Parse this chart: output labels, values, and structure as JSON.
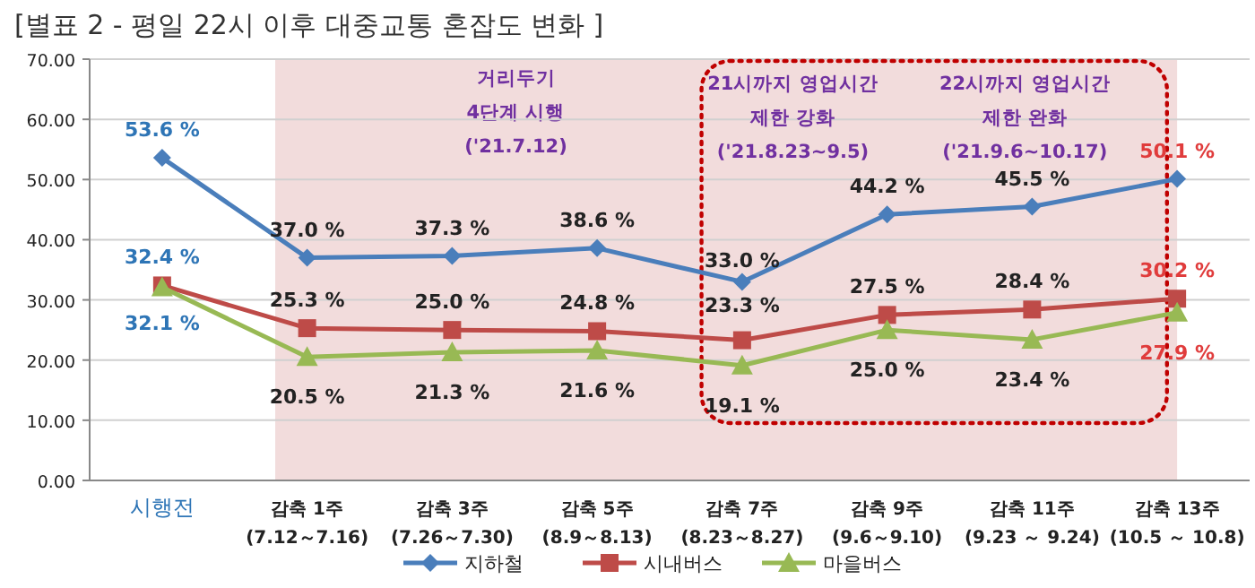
{
  "chart_data": {
    "type": "line",
    "title": "[별표 2 - 평일 22시 이후 대중교통 혼잡도 변화 ]",
    "categories": [
      "시행전",
      "감축 1주\n(7.12～7.16)",
      "감축 3주\n(7.26～7.30)",
      "감축 5주\n(8.9～8.13)",
      "감축 7주\n(8.23～8.27)",
      "감축 9주\n(9.6～9.10)",
      "감축 11주\n(9.23 ～ 9.24)",
      "감축 13주\n(10.5 ～ 10.8)"
    ],
    "series": [
      {
        "name": "지하철",
        "color": "#4a7ebb",
        "marker": "diamond",
        "values": [
          53.6,
          37.0,
          37.3,
          38.6,
          33.0,
          44.2,
          45.5,
          50.1
        ],
        "value_labels": [
          "53.6 %",
          "37.0 %",
          "37.3 %",
          "38.6 %",
          "33.0 %",
          "44.2 %",
          "45.5 %",
          "50.1 %"
        ]
      },
      {
        "name": "시내버스",
        "color": "#be4b48",
        "marker": "square",
        "values": [
          32.4,
          25.3,
          25.0,
          24.8,
          23.3,
          27.5,
          28.4,
          30.2
        ],
        "value_labels": [
          "32.4 %",
          "25.3 %",
          "25.0 %",
          "24.8 %",
          "23.3 %",
          "27.5 %",
          "28.4 %",
          "30.2 %"
        ]
      },
      {
        "name": "마을버스",
        "color": "#98b954",
        "marker": "triangle",
        "values": [
          32.1,
          20.5,
          21.3,
          21.6,
          19.1,
          25.0,
          23.4,
          27.9
        ],
        "value_labels": [
          "32.1 %",
          "20.5 %",
          "21.3 %",
          "21.6 %",
          "19.1 %",
          "25.0 %",
          "23.4 %",
          "27.9 %"
        ]
      }
    ],
    "ylim": [
      0,
      70
    ],
    "yticks": [
      {
        "value": 0,
        "label": "0.00"
      },
      {
        "value": 10,
        "label": "10.00"
      },
      {
        "value": 20,
        "label": "20.00"
      },
      {
        "value": 30,
        "label": "30.00"
      },
      {
        "value": 40,
        "label": "40.00"
      },
      {
        "value": 50,
        "label": "50.00"
      },
      {
        "value": 60,
        "label": "60.00"
      },
      {
        "value": 70,
        "label": "70.00"
      }
    ],
    "grid": "y",
    "legend": "bottom",
    "line_style": "solid",
    "bands": [
      {
        "axis": "x",
        "from": "감축 1주\n(7.12～7.16)",
        "to": "감축 13주\n(10.5 ～ 10.8)",
        "label": "거리두기\n4단계 시행\n('21.7.12)",
        "color": "#f2dcdc"
      }
    ],
    "annotations": [
      "21시까지 영업시간\n제한 강화\n('21.8.23~9.5)",
      "22시까지 영업시간\n제한 완화\n('21.9.6~10.17)"
    ]
  }
}
